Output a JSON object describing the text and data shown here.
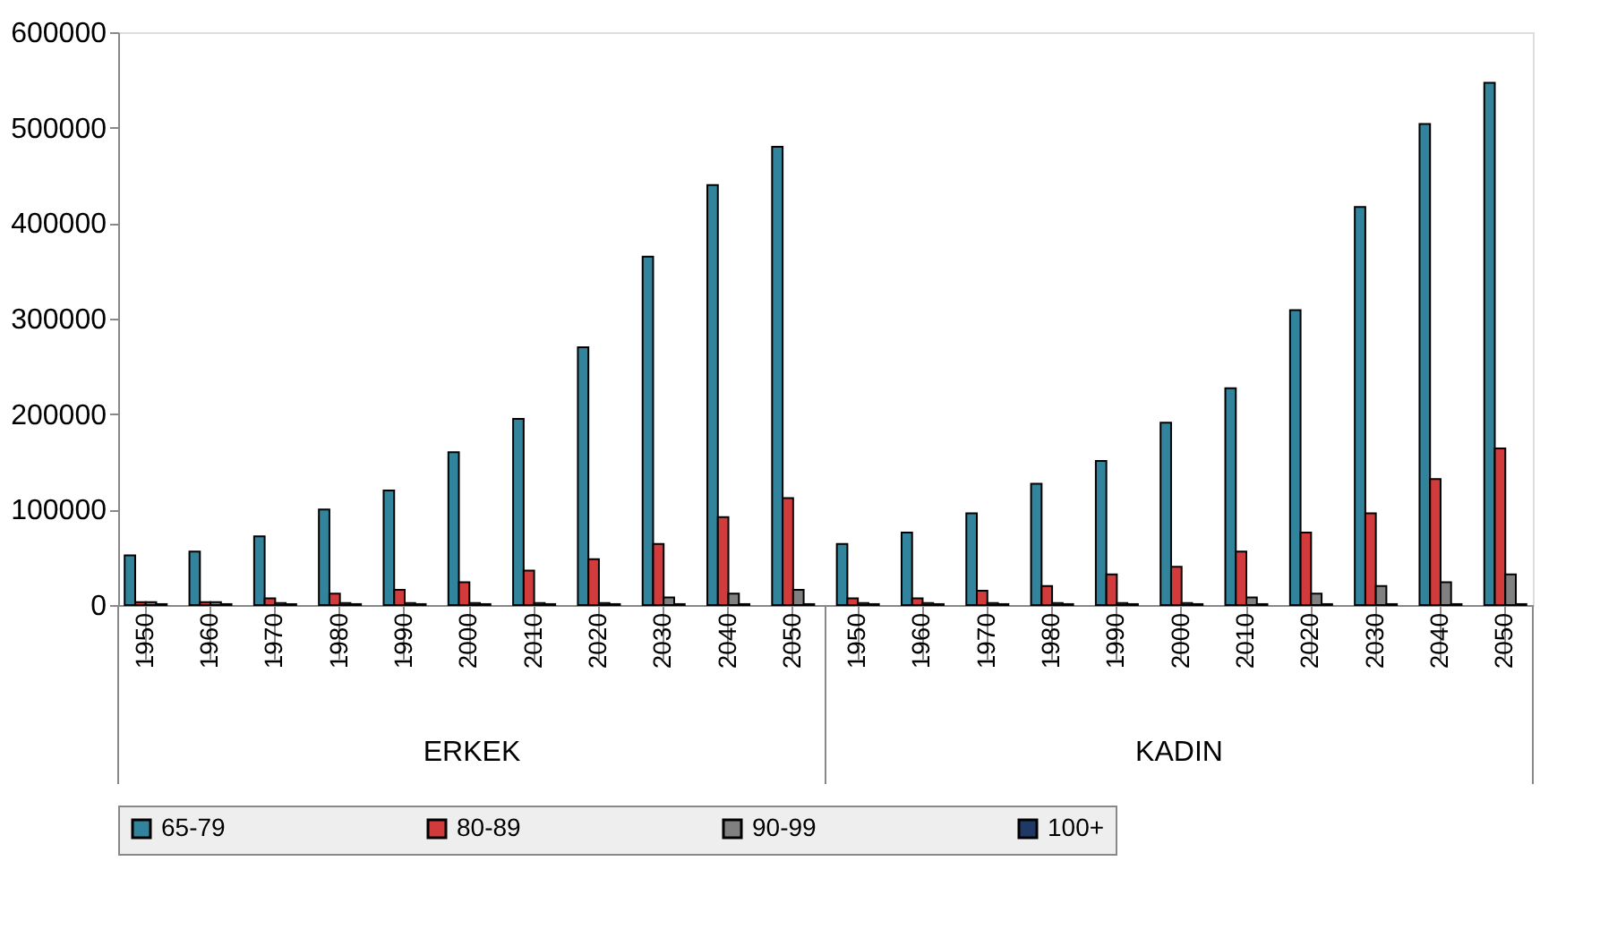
{
  "chart_data": {
    "type": "bar",
    "categories": [
      "1950",
      "1960",
      "1970",
      "1980",
      "1990",
      "2000",
      "2010",
      "2020",
      "2030",
      "2040",
      "2050",
      "1950",
      "1960",
      "1970",
      "1980",
      "1990",
      "2000",
      "2010",
      "2020",
      "2030",
      "2040",
      "2050"
    ],
    "series": [
      {
        "name": "65-79",
        "color": "#31849b",
        "values": [
          52000,
          56000,
          72000,
          100000,
          120000,
          160000,
          195000,
          270000,
          365000,
          440000,
          480000,
          64000,
          76000,
          96000,
          127000,
          151000,
          191000,
          227000,
          309000,
          417000,
          504000,
          547000
        ]
      },
      {
        "name": "80-89",
        "color": "#d13b3b",
        "values": [
          3000,
          3000,
          7000,
          12000,
          16000,
          24000,
          36000,
          48000,
          64000,
          92000,
          112000,
          7000,
          7000,
          15000,
          20000,
          32000,
          40000,
          56000,
          76000,
          96000,
          132000,
          164000
        ]
      },
      {
        "name": "90-99",
        "color": "#808080",
        "values": [
          3000,
          3000,
          2000,
          2000,
          2000,
          2000,
          2000,
          2000,
          8000,
          12000,
          16000,
          2000,
          2000,
          2000,
          2000,
          2000,
          2000,
          8000,
          12000,
          20000,
          24000,
          32000
        ]
      },
      {
        "name": "100+",
        "color": "#1f3864",
        "values": [
          1000,
          1000,
          1000,
          1000,
          1000,
          1000,
          1000,
          1000,
          1000,
          1000,
          1000,
          1000,
          1000,
          1000,
          1000,
          1000,
          1000,
          1000,
          1000,
          1000,
          1000,
          1000
        ]
      }
    ],
    "annotations": [
      "ERKEK",
      "KADIN"
    ],
    "ylim": [
      0,
      600000
    ],
    "yticks": [
      0,
      100000,
      200000,
      300000,
      400000,
      500000,
      600000
    ],
    "grid": false,
    "legend": "bottom"
  }
}
